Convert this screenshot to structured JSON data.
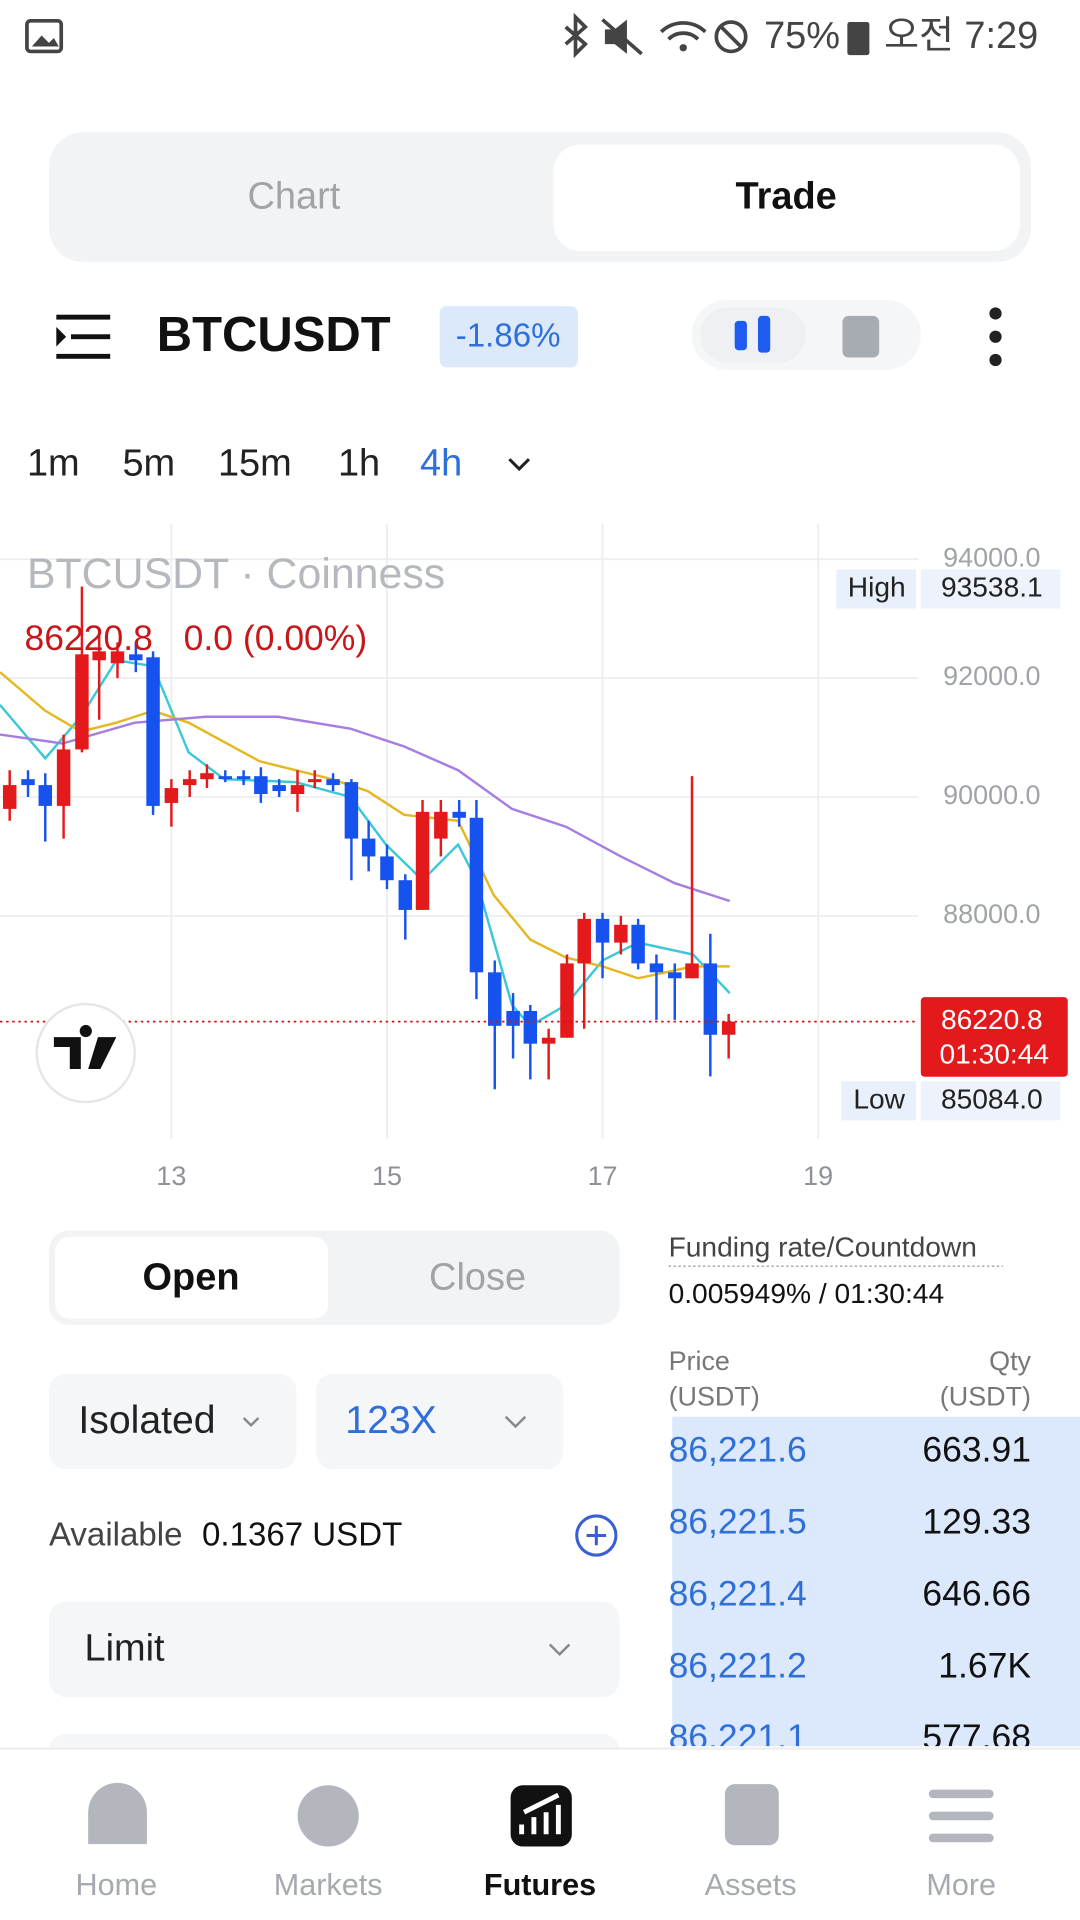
{
  "status_bar": {
    "battery": "75%",
    "time": "오전 7:29"
  },
  "tabs": [
    "Chart",
    "Trade"
  ],
  "symbol": "BTCUSDT",
  "change": "-1.86%",
  "timeframes": [
    "1m",
    "5m",
    "15m",
    "1h",
    "4h"
  ],
  "chart_data": {
    "type": "candlestick",
    "title": "BTCUSDT · Coinness",
    "last_price_label": "86220.8",
    "last_change_label": "0.0 (0.00%)",
    "high_label": "High",
    "high_value": "93538.1",
    "low_label": "Low",
    "low_value": "85084.0",
    "price_tag": "86220.8",
    "countdown": "01:30:44",
    "up_color": "#e3191c",
    "down_color": "#1652ee",
    "x": [
      11.5,
      11.67,
      11.83,
      12,
      12.17,
      12.33,
      12.5,
      12.67,
      12.83,
      13,
      13.17,
      13.33,
      13.5,
      13.67,
      13.83,
      14,
      14.17,
      14.33,
      14.5,
      14.67,
      14.83,
      15,
      15.17,
      15.33,
      15.5,
      15.67,
      15.83,
      16,
      16.17,
      16.33,
      16.5,
      16.67,
      16.83,
      17,
      17.17,
      17.33,
      17.5,
      17.67,
      17.83,
      18,
      18.17
    ],
    "open": [
      89800,
      90300,
      90200,
      89850,
      90800,
      92300,
      92250,
      92400,
      92350,
      89900,
      90200,
      90300,
      90350,
      90350,
      90350,
      90200,
      90050,
      90250,
      90300,
      90250,
      89300,
      89000,
      88600,
      88100,
      89300,
      89750,
      89650,
      87050,
      86400,
      86400,
      85850,
      85950,
      87200,
      87950,
      87550,
      87850,
      87200,
      87050,
      86950,
      87200,
      86000
    ],
    "high": [
      90450,
      90450,
      90400,
      91050,
      93538.1,
      92800,
      92600,
      92600,
      92450,
      90300,
      90450,
      90550,
      90450,
      90450,
      90500,
      90300,
      90450,
      90450,
      90400,
      90300,
      89600,
      89200,
      88700,
      89950,
      89950,
      89950,
      89950,
      87250,
      86700,
      86500,
      86100,
      87350,
      88050,
      88050,
      88000,
      87950,
      87350,
      87200,
      90350,
      87700,
      86350
    ],
    "low": [
      89600,
      90000,
      89250,
      89300,
      90750,
      91300,
      92000,
      92100,
      89700,
      89500,
      90000,
      90150,
      90250,
      90200,
      89900,
      90000,
      89750,
      90150,
      90100,
      88600,
      88750,
      88450,
      87600,
      88100,
      89000,
      89500,
      86600,
      85084,
      85600,
      85250,
      85250,
      85950,
      86100,
      86950,
      87350,
      87100,
      86250,
      86250,
      86950,
      85300,
      85600
    ],
    "close": [
      90200,
      90200,
      89850,
      90800,
      92400,
      92450,
      92450,
      92300,
      89850,
      90150,
      90300,
      90400,
      90300,
      90300,
      90050,
      90100,
      90200,
      90300,
      90200,
      89300,
      89000,
      88600,
      88100,
      89750,
      89750,
      89650,
      87050,
      86150,
      86150,
      85850,
      85950,
      87200,
      87950,
      87550,
      87850,
      87200,
      87050,
      86950,
      87200,
      86000,
      86220.8
    ],
    "series": [
      {
        "color": "#3cc8d8",
        "x": [
          11.41,
          11.83,
          12.16,
          12.49,
          12.83,
          13.16,
          13.49,
          14.15,
          14.66,
          14.99,
          15.33,
          15.66,
          15.83,
          16.16,
          16.33,
          16.66,
          17,
          17.33,
          17.84,
          18.18
        ],
        "values": [
          91550,
          90650,
          91350,
          92300,
          92200,
          90750,
          90300,
          90250,
          90000,
          89200,
          88600,
          89200,
          88600,
          86500,
          86150,
          86500,
          87250,
          87550,
          87350,
          86700
        ]
      },
      {
        "color": "#e6b722",
        "x": [
          11.41,
          11.83,
          12.16,
          12.49,
          12.83,
          13.16,
          13.82,
          14.49,
          14.82,
          15.16,
          15.66,
          15.99,
          16.33,
          16.66,
          17,
          17.33,
          17.84,
          18.18
        ],
        "values": [
          92100,
          91450,
          91100,
          91250,
          91450,
          91250,
          90600,
          90300,
          90100,
          89700,
          89600,
          88350,
          87600,
          87300,
          87150,
          86950,
          87150,
          87150
        ]
      },
      {
        "color": "#a67de0",
        "x": [
          11.41,
          11.99,
          12.66,
          13.32,
          13.99,
          14.66,
          15.16,
          15.66,
          16.16,
          16.66,
          17.17,
          17.67,
          18.18
        ],
        "values": [
          91050,
          90900,
          91250,
          91350,
          91350,
          91150,
          90850,
          90450,
          89800,
          89500,
          89000,
          88550,
          88250
        ]
      }
    ],
    "xlim": [
      11.41,
      19.93
    ],
    "xticks": [
      13,
      15,
      17,
      19
    ],
    "ylim": [
      84250,
      94550
    ],
    "yticks": [
      {
        "value": 88000,
        "label": "88000.0"
      },
      {
        "value": 90000,
        "label": "90000.0"
      },
      {
        "value": 92000,
        "label": "92000.0"
      },
      {
        "value": 94000,
        "label": "94000.0"
      }
    ],
    "grid": true
  },
  "order_form": {
    "modes": [
      "Open",
      "Close"
    ],
    "margin": "Isolated",
    "leverage": "123X",
    "available_label": "Available",
    "available_value": "0.1367 USDT",
    "order_type": "Limit"
  },
  "funding": {
    "label": "Funding rate/Countdown",
    "value": "0.005949% / 01:30:44"
  },
  "order_book": {
    "price_header": [
      "Price",
      "(USDT)"
    ],
    "qty_header": [
      "Qty",
      "(USDT)"
    ],
    "rows": [
      [
        "86,221.6",
        "663.91"
      ],
      [
        "86,221.5",
        "129.33"
      ],
      [
        "86,221.4",
        "646.66"
      ],
      [
        "86,221.2",
        "1.67K"
      ],
      [
        "86,221.1",
        "577.68"
      ]
    ]
  },
  "nav": [
    "Home",
    "Markets",
    "Futures",
    "Assets",
    "More"
  ]
}
